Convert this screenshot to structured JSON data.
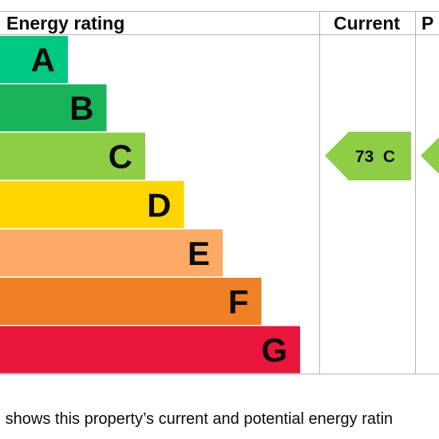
{
  "headers": {
    "rating": "Energy rating",
    "current": "Current",
    "potential": "P"
  },
  "caption": "n shows this property’s current and potential energy ratin",
  "chart_data": {
    "type": "bar",
    "title": "",
    "categories": [
      "A",
      "B",
      "C",
      "D",
      "E",
      "F",
      "G"
    ],
    "colors": [
      "#00c781",
      "#19b459",
      "#8dce46",
      "#ffd500",
      "#fcaa65",
      "#ef8023",
      "#e9153b"
    ],
    "current": {
      "value": 73,
      "band": "C",
      "label": "73  C",
      "color": "#8dce46"
    },
    "potential": {
      "band": "C",
      "color": "#8dce46"
    }
  }
}
